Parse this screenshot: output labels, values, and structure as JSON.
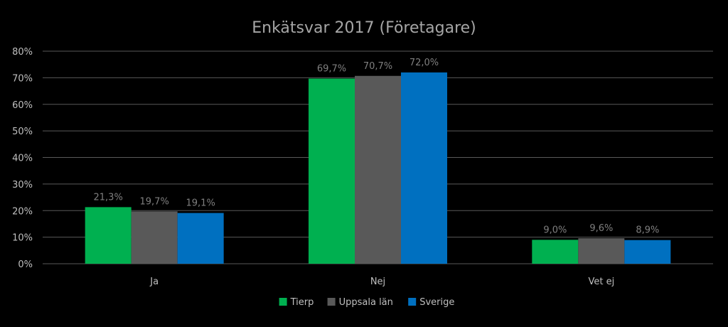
{
  "chart_data": {
    "type": "bar",
    "title": "Enkätsvar 2017 (Företagare)",
    "categories": [
      "Ja",
      "Nej",
      "Vet ej"
    ],
    "series": [
      {
        "name": "Tierp",
        "color": "#00b050",
        "values": [
          21.3,
          69.7,
          9.0
        ],
        "labels": [
          "21,3%",
          "69,7%",
          "9,0%"
        ]
      },
      {
        "name": "Uppsala län",
        "color": "#595959",
        "values": [
          19.7,
          70.7,
          9.6
        ],
        "labels": [
          "19,7%",
          "70,7%",
          "9,6%"
        ]
      },
      {
        "name": "Sverige",
        "color": "#0070c0",
        "values": [
          19.1,
          72.0,
          8.9
        ],
        "labels": [
          "19,1%",
          "72,0%",
          "8,9%"
        ]
      }
    ],
    "ylim": [
      0,
      80
    ],
    "yticks": [
      "0%",
      "10%",
      "20%",
      "30%",
      "40%",
      "50%",
      "60%",
      "70%",
      "80%"
    ],
    "ytick_values": [
      0,
      10,
      20,
      30,
      40,
      50,
      60,
      70,
      80
    ],
    "legend_position": "bottom",
    "grid": true
  }
}
